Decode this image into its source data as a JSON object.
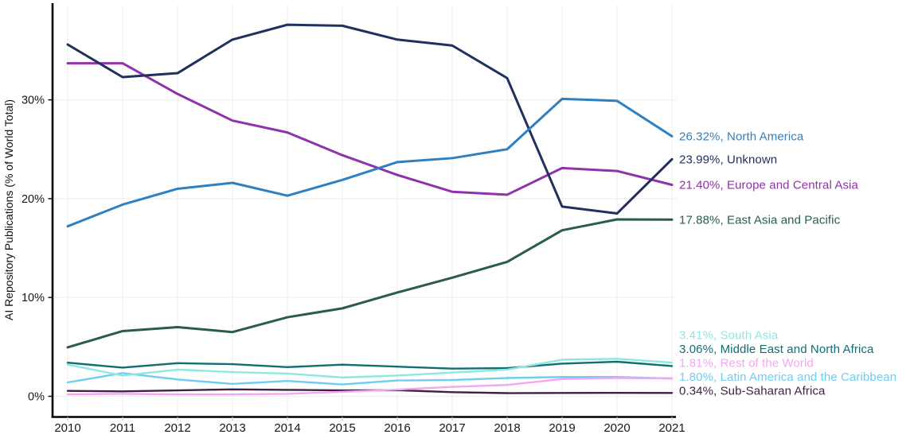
{
  "chart_data": {
    "type": "line",
    "title": "",
    "xlabel": "",
    "ylabel": "AI Repository Publications (% of World Total)",
    "x": [
      2010,
      2011,
      2012,
      2013,
      2014,
      2015,
      2016,
      2017,
      2018,
      2019,
      2020,
      2021
    ],
    "ylim": [
      0,
      39
    ],
    "grid": true,
    "legend_position": "right-edge-labels",
    "yticks": [
      {
        "v": 0,
        "label": "0%"
      },
      {
        "v": 10,
        "label": "10%"
      },
      {
        "v": 20,
        "label": "20%"
      },
      {
        "v": 30,
        "label": "30%"
      }
    ],
    "series": [
      {
        "name": "North America",
        "color": "#2f80c1",
        "end_label": "26.32%, North America",
        "values": [
          17.2,
          19.4,
          21.0,
          21.6,
          20.3,
          21.9,
          23.7,
          24.1,
          25.0,
          30.1,
          29.9,
          26.32
        ]
      },
      {
        "name": "Unknown",
        "color": "#20305f",
        "end_label": "23.99%, Unknown",
        "values": [
          35.6,
          32.3,
          32.7,
          36.1,
          37.6,
          37.5,
          36.1,
          35.5,
          32.2,
          19.2,
          18.5,
          23.99
        ]
      },
      {
        "name": "Europe and Central Asia",
        "color": "#9032ac",
        "end_label": "21.40%, Europe and Central Asia",
        "values": [
          33.7,
          33.7,
          30.6,
          27.9,
          26.7,
          24.4,
          22.4,
          20.7,
          20.4,
          23.1,
          22.8,
          21.4
        ]
      },
      {
        "name": "East Asia and Pacific",
        "color": "#2a5b52",
        "end_label": "17.88%, East Asia and Pacific",
        "values": [
          4.95,
          6.6,
          7.0,
          6.5,
          8.0,
          8.9,
          10.5,
          12.0,
          13.6,
          16.8,
          17.9,
          17.88
        ]
      },
      {
        "name": "South Asia",
        "color": "#8ce9e1",
        "end_label": "3.41%, South Asia",
        "values": [
          3.2,
          2.1,
          2.7,
          2.45,
          2.3,
          1.9,
          2.1,
          2.4,
          2.7,
          3.7,
          3.8,
          3.41
        ]
      },
      {
        "name": "Middle East and North Africa",
        "color": "#106e73",
        "end_label": "3.06%, Middle East and North Africa",
        "values": [
          3.4,
          2.9,
          3.35,
          3.25,
          2.95,
          3.2,
          3.0,
          2.8,
          2.85,
          3.3,
          3.5,
          3.06
        ]
      },
      {
        "name": "Rest of the World",
        "color": "#f0a9f0",
        "end_label": "1.81%, Rest of the World",
        "values": [
          0.2,
          0.25,
          0.2,
          0.2,
          0.25,
          0.45,
          0.68,
          0.95,
          1.15,
          1.75,
          1.85,
          1.81
        ]
      },
      {
        "name": "Latin America and the Caribbean",
        "color": "#6fcdf4",
        "end_label": "1.80%, Latin America and the Caribbean",
        "values": [
          1.4,
          2.35,
          1.7,
          1.25,
          1.55,
          1.2,
          1.6,
          1.65,
          1.85,
          1.95,
          1.95,
          1.8
        ]
      },
      {
        "name": "Sub-Saharan Africa",
        "color": "#3f2144",
        "end_label": "0.34%, Sub-Saharan Africa",
        "values": [
          0.55,
          0.5,
          0.6,
          0.7,
          0.65,
          0.6,
          0.62,
          0.42,
          0.32,
          0.34,
          0.35,
          0.34
        ]
      }
    ]
  }
}
